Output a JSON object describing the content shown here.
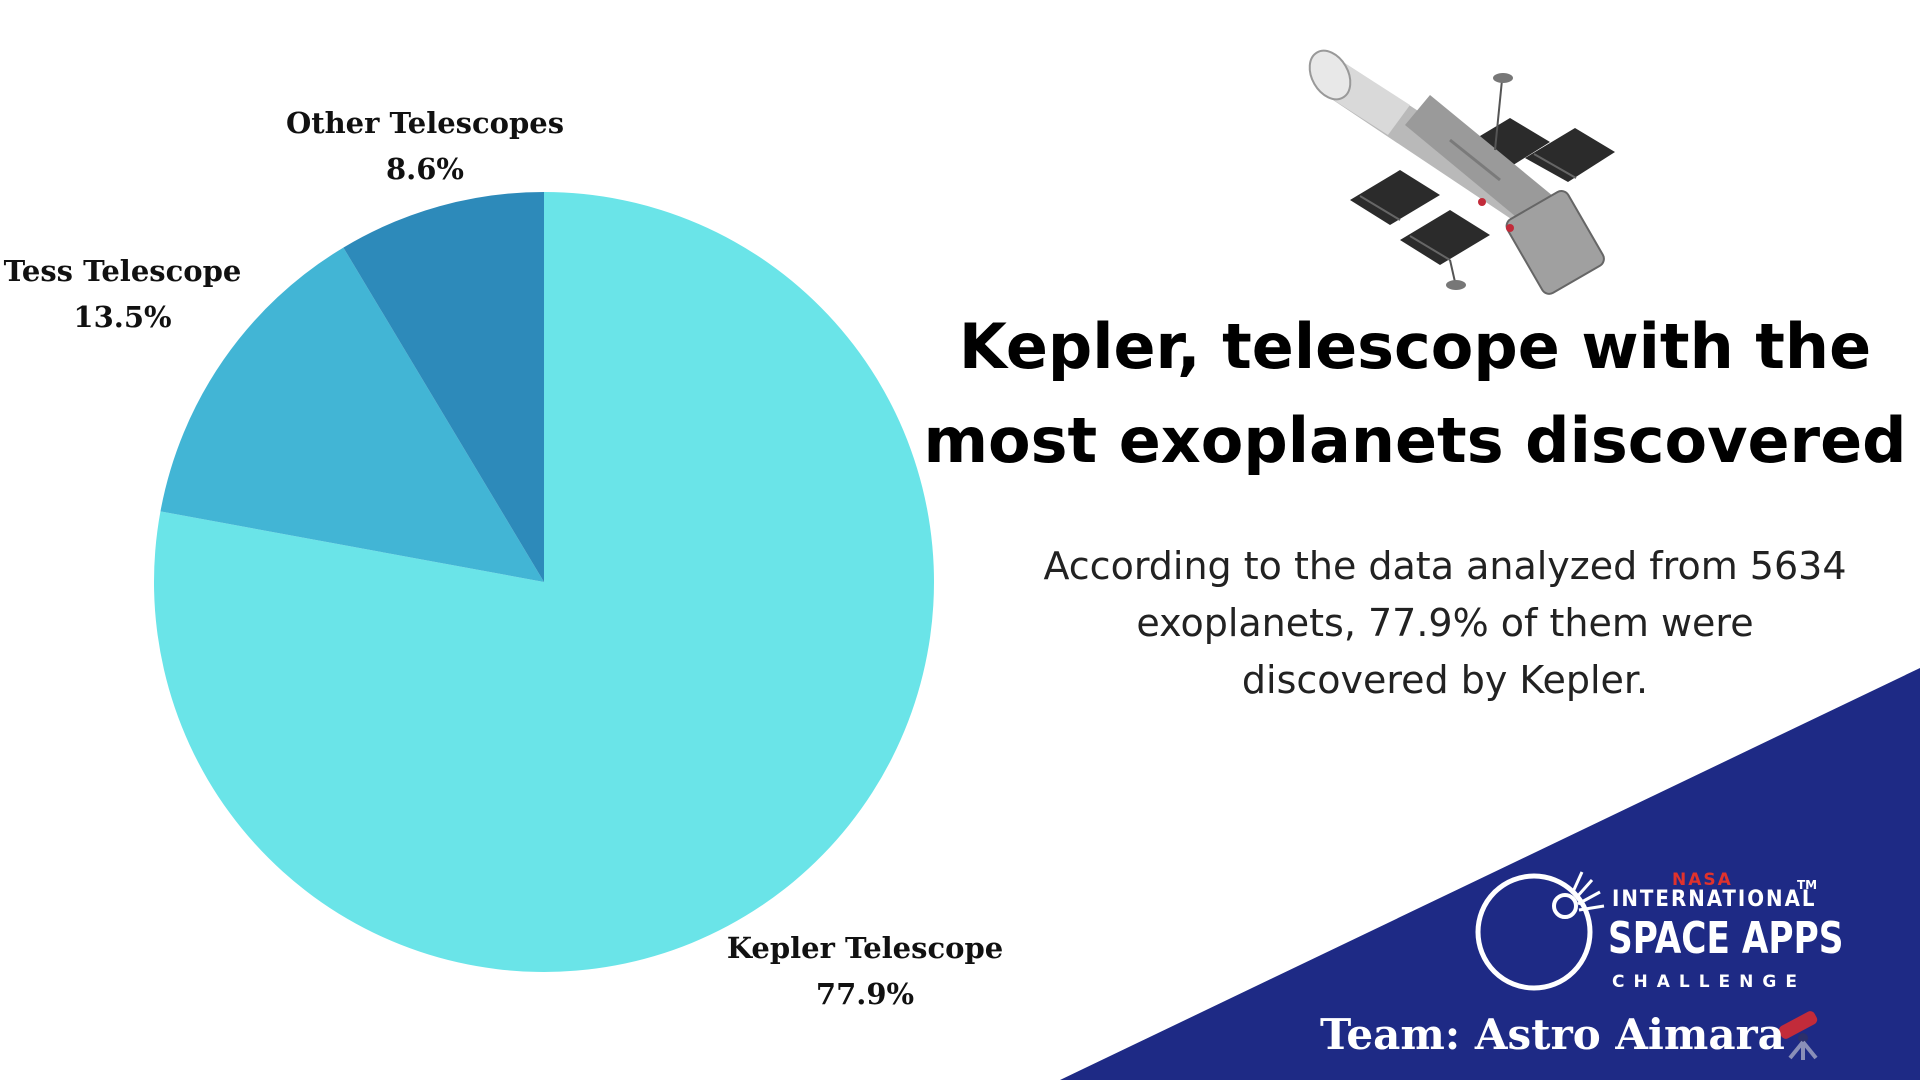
{
  "chart_data": {
    "type": "pie",
    "title": "",
    "slices": [
      {
        "label": "Kepler Telescope",
        "value": 77.9,
        "value_label": "77.9%",
        "color": "#6ae4e8"
      },
      {
        "label": "Tess Telescope",
        "value": 13.5,
        "value_label": "13.5%",
        "color": "#42b5d5"
      },
      {
        "label": "Other Telescopes",
        "value": 8.6,
        "value_label": "8.6%",
        "color": "#2d8aba"
      }
    ]
  },
  "headline": {
    "line1": "Kepler, telescope with the",
    "line2": "most exoplanets discovered"
  },
  "description": {
    "line1": "According to the data analyzed from 5634",
    "line2": "exoplanets, 77.9% of them were",
    "line3": "discovered by Kepler."
  },
  "logo": {
    "nasa": "NASA",
    "international": "INTERNATIONAL",
    "space_apps": "SPACE APPS",
    "challenge": "CHALLENGE",
    "trademark": "TM"
  },
  "team": "Team: Astro Aimara",
  "colors": {
    "corner_bg": "#1e2a85",
    "telescope_accent": "#c22b3a"
  },
  "icons": {
    "satellite": "space-telescope-illustration",
    "logo": "space-apps-logo-icon",
    "team": "telescope-emoji-icon"
  }
}
